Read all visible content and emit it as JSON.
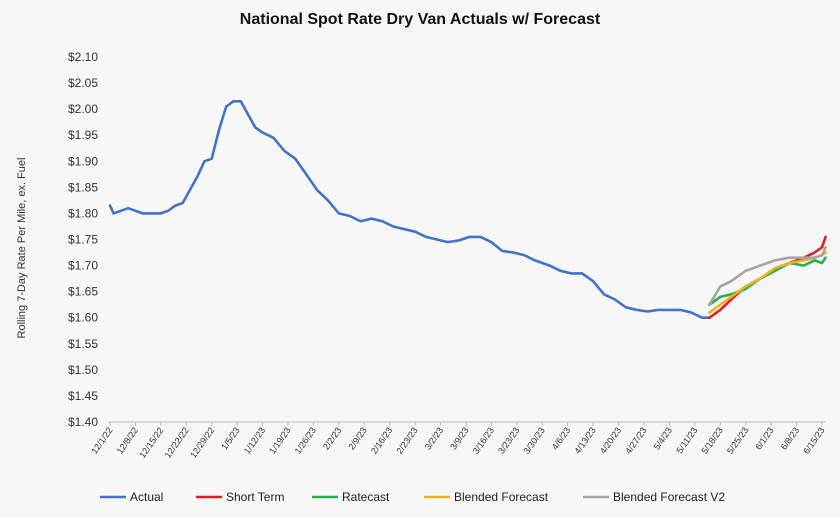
{
  "chart_data": {
    "type": "line",
    "title": "National Spot Rate Dry Van Actuals w/ Forecast",
    "xlabel": "",
    "ylabel": "Rolling 7-Day Rate Per Mile, ex. Fuel",
    "ylim": [
      1.4,
      2.1
    ],
    "y_ticks": [
      "$2.10",
      "$2.05",
      "$2.00",
      "$1.95",
      "$1.90",
      "$1.85",
      "$1.80",
      "$1.75",
      "$1.70",
      "$1.65",
      "$1.60",
      "$1.55",
      "$1.50",
      "$1.45",
      "$1.40"
    ],
    "x_ticks": [
      "12/1/22",
      "12/8/22",
      "12/15/22",
      "12/22/22",
      "12/29/22",
      "1/5/23",
      "1/12/23",
      "1/19/23",
      "1/26/23",
      "2/2/23",
      "2/9/23",
      "2/16/23",
      "2/23/23",
      "3/2/23",
      "3/9/23",
      "3/16/23",
      "3/23/23",
      "3/30/23",
      "4/6/23",
      "4/13/23",
      "4/20/23",
      "4/27/23",
      "5/4/23",
      "5/11/23",
      "5/18/23",
      "5/25/23",
      "6/1/23",
      "6/8/23",
      "6/15/23"
    ],
    "grid": false,
    "legend": "bottom",
    "series": [
      {
        "name": "Actual",
        "color": "#4472c4",
        "x": [
          "12/1/22",
          "12/2/22",
          "12/4/22",
          "12/6/22",
          "12/8/22",
          "12/10/22",
          "12/12/22",
          "12/15/22",
          "12/17/22",
          "12/19/22",
          "12/21/22",
          "12/23/22",
          "12/25/22",
          "12/27/22",
          "12/29/22",
          "12/31/22",
          "1/2/23",
          "1/4/23",
          "1/6/23",
          "1/8/23",
          "1/10/23",
          "1/12/23",
          "1/15/23",
          "1/18/23",
          "1/21/23",
          "1/24/23",
          "1/27/23",
          "1/30/23",
          "2/2/23",
          "2/5/23",
          "2/8/23",
          "2/11/23",
          "2/14/23",
          "2/17/23",
          "2/20/23",
          "2/23/23",
          "2/26/23",
          "3/1/23",
          "3/4/23",
          "3/7/23",
          "3/10/23",
          "3/13/23",
          "3/16/23",
          "3/19/23",
          "3/22/23",
          "3/25/23",
          "3/28/23",
          "4/1/23",
          "4/4/23",
          "4/7/23",
          "4/10/23",
          "4/13/23",
          "4/16/23",
          "4/19/23",
          "4/22/23",
          "4/25/23",
          "4/28/23",
          "5/1/23",
          "5/4/23",
          "5/7/23",
          "5/10/23",
          "5/13/23",
          "5/15/23"
        ],
        "y": [
          1.815,
          1.8,
          1.805,
          1.81,
          1.805,
          1.8,
          1.8,
          1.8,
          1.805,
          1.815,
          1.82,
          1.845,
          1.87,
          1.9,
          1.905,
          1.96,
          2.005,
          2.015,
          2.015,
          1.99,
          1.965,
          1.955,
          1.945,
          1.92,
          1.905,
          1.875,
          1.845,
          1.825,
          1.8,
          1.795,
          1.785,
          1.79,
          1.785,
          1.775,
          1.77,
          1.765,
          1.755,
          1.75,
          1.745,
          1.748,
          1.755,
          1.755,
          1.745,
          1.728,
          1.725,
          1.72,
          1.71,
          1.7,
          1.69,
          1.685,
          1.685,
          1.67,
          1.645,
          1.635,
          1.62,
          1.615,
          1.612,
          1.615,
          1.615,
          1.615,
          1.61,
          1.6,
          1.6
        ]
      },
      {
        "name": "Short Term",
        "color": "#e02020",
        "x": [
          "5/15/23",
          "5/18/23",
          "5/21/23",
          "5/25/23",
          "5/29/23",
          "6/2/23",
          "6/6/23",
          "6/10/23",
          "6/13/23",
          "6/15/23",
          "6/16/23"
        ],
        "y": [
          1.6,
          1.615,
          1.635,
          1.66,
          1.675,
          1.69,
          1.705,
          1.715,
          1.725,
          1.735,
          1.755
        ]
      },
      {
        "name": "Ratecast",
        "color": "#22b14c",
        "x": [
          "5/15/23",
          "5/18/23",
          "5/21/23",
          "5/25/23",
          "5/29/23",
          "6/2/23",
          "6/6/23",
          "6/10/23",
          "6/13/23",
          "6/15/23",
          "6/16/23"
        ],
        "y": [
          1.625,
          1.64,
          1.645,
          1.655,
          1.675,
          1.69,
          1.705,
          1.7,
          1.71,
          1.705,
          1.715
        ]
      },
      {
        "name": "Blended Forecast",
        "color": "#f0b020",
        "x": [
          "5/15/23",
          "5/18/23",
          "5/21/23",
          "5/25/23",
          "5/29/23",
          "6/2/23",
          "6/6/23",
          "6/10/23",
          "6/13/23",
          "6/15/23",
          "6/16/23"
        ],
        "y": [
          1.61,
          1.625,
          1.64,
          1.66,
          1.675,
          1.695,
          1.705,
          1.71,
          1.715,
          1.72,
          1.725
        ]
      },
      {
        "name": "Blended Forecast V2",
        "color": "#a5a5a5",
        "x": [
          "5/15/23",
          "5/18/23",
          "5/21/23",
          "5/25/23",
          "5/29/23",
          "6/2/23",
          "6/6/23",
          "6/10/23",
          "6/13/23",
          "6/15/23",
          "6/16/23"
        ],
        "y": [
          1.625,
          1.66,
          1.67,
          1.69,
          1.7,
          1.71,
          1.715,
          1.715,
          1.715,
          1.72,
          1.735
        ]
      }
    ]
  }
}
